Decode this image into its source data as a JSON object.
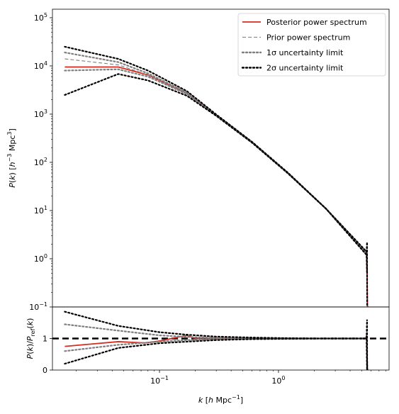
{
  "chart_data": [
    {
      "panel": "top",
      "type": "line",
      "xscale": "log",
      "yscale": "log",
      "xlim": [
        0.0126,
        8.5
      ],
      "ylim": [
        0.1,
        150000
      ],
      "ylabel": "P(k) [h⁻³ Mpc³]",
      "yticklabels": [
        {
          "value": 0.1,
          "mant": "10",
          "exp": "−1"
        },
        {
          "value": 1,
          "mant": "10",
          "exp": "0"
        },
        {
          "value": 10,
          "mant": "10",
          "exp": "1"
        },
        {
          "value": 100,
          "mant": "10",
          "exp": "2"
        },
        {
          "value": 1000,
          "mant": "10",
          "exp": "3"
        },
        {
          "value": 10000,
          "mant": "10",
          "exp": "4"
        },
        {
          "value": 100000,
          "mant": "10",
          "exp": "5"
        }
      ],
      "legend": {
        "placement": "top-right",
        "entries": [
          {
            "label": "Posterior power spectrum",
            "style": "solid",
            "color": "#d62b1e"
          },
          {
            "label": "Prior power spectrum",
            "style": "dashed",
            "color": "#7f7f7f"
          },
          {
            "label": "1σ uncertainty limit",
            "style": "dotted",
            "color": "#7f7f7f"
          },
          {
            "label": "2σ uncertainty limit",
            "style": "dotted",
            "color": "#000000"
          }
        ]
      },
      "series": [
        {
          "name": "Posterior power spectrum",
          "color": "#d62b1e",
          "style": "solid",
          "width": 1.8,
          "x": [
            0.016,
            0.045,
            0.08,
            0.17,
            0.3,
            0.6,
            1.2,
            2.5,
            5.5,
            5.55,
            5.6,
            5.7
          ],
          "y": [
            9500,
            9500,
            6500,
            2700,
            950,
            260,
            60,
            11,
            1.3,
            0.5,
            0.1,
            0.1
          ]
        },
        {
          "name": "Prior power spectrum",
          "color": "#7f7f7f",
          "style": "dashed",
          "width": 1.1,
          "x": [
            0.016,
            0.045,
            0.08,
            0.17,
            0.3,
            0.6,
            1.2,
            2.5,
            5.5,
            5.55
          ],
          "y": [
            14000,
            10500,
            6500,
            2700,
            950,
            260,
            60,
            11,
            1.3,
            1.3
          ]
        },
        {
          "name": "1σ upper",
          "color": "#7f7f7f",
          "style": "dotted",
          "width": 2.2,
          "x": [
            0.016,
            0.045,
            0.08,
            0.17,
            0.3,
            0.6,
            1.2,
            2.5,
            5.5,
            5.55
          ],
          "y": [
            19000,
            12000,
            7000,
            2800,
            960,
            262,
            60,
            11,
            1.35,
            1.5
          ]
        },
        {
          "name": "1σ lower",
          "color": "#7f7f7f",
          "style": "dotted",
          "width": 2.2,
          "x": [
            0.016,
            0.045,
            0.08,
            0.17,
            0.3,
            0.6,
            1.2,
            2.5,
            5.5,
            5.55
          ],
          "y": [
            8000,
            8500,
            6000,
            2600,
            940,
            258,
            60,
            11,
            1.25,
            1.1
          ]
        },
        {
          "name": "2σ upper",
          "color": "#000000",
          "style": "dotted",
          "width": 2.2,
          "x": [
            0.016,
            0.045,
            0.08,
            0.17,
            0.3,
            0.6,
            1.2,
            2.5,
            5.5,
            5.55,
            5.56
          ],
          "y": [
            25000,
            14000,
            8000,
            3000,
            980,
            265,
            61,
            11,
            1.4,
            2.2,
            0.1
          ]
        },
        {
          "name": "2σ lower",
          "color": "#000000",
          "style": "dotted",
          "width": 2.2,
          "x": [
            0.016,
            0.045,
            0.08,
            0.17,
            0.3,
            0.6,
            1.2,
            2.5,
            5.5,
            5.55
          ],
          "y": [
            2500,
            6800,
            5000,
            2400,
            920,
            255,
            59,
            11,
            1.2,
            0.5
          ]
        }
      ]
    },
    {
      "panel": "bottom",
      "type": "line",
      "xscale": "log",
      "xlim": [
        0.0126,
        8.5
      ],
      "ylim": [
        0,
        2
      ],
      "xlabel": "k [h Mpc⁻¹]",
      "ylabel": "P(k)/P_ref(k)",
      "xticklabels": [
        {
          "value": 0.1,
          "mant": "10",
          "exp": "−1"
        },
        {
          "value": 1,
          "mant": "10",
          "exp": "0"
        }
      ],
      "yticklabels": [
        "0",
        "1"
      ],
      "yticks": [
        0,
        1
      ],
      "series": [
        {
          "name": "Reference",
          "color": "#000000",
          "style": "dashed-thick",
          "width": 2.4,
          "x": [
            0.0126,
            8.5
          ],
          "y": [
            1.0,
            1.0
          ]
        },
        {
          "name": "Posterior ratio",
          "color": "#d62b1e",
          "style": "solid",
          "width": 1.8,
          "x": [
            0.016,
            0.045,
            0.075,
            0.1,
            0.17,
            0.2,
            0.3,
            0.6,
            1.2,
            2.5,
            5.4,
            5.5,
            5.55,
            5.6,
            5.7
          ],
          "y": [
            0.75,
            0.9,
            0.86,
            0.92,
            1.1,
            1.0,
            1.0,
            1.0,
            1.0,
            1.0,
            1.0,
            1.1,
            0.5,
            0.0,
            0.0
          ]
        },
        {
          "name": "1σ upper",
          "color": "#7f7f7f",
          "style": "dotted",
          "width": 2.2,
          "x": [
            0.016,
            0.045,
            0.1,
            0.17,
            0.3,
            0.6,
            1.2,
            2.5,
            5.5
          ],
          "y": [
            1.45,
            1.25,
            1.1,
            1.05,
            1.02,
            1.01,
            1.0,
            1.0,
            1.0
          ]
        },
        {
          "name": "1σ lower",
          "color": "#7f7f7f",
          "style": "dotted",
          "width": 2.2,
          "x": [
            0.016,
            0.045,
            0.1,
            0.17,
            0.3,
            0.6,
            1.2,
            2.5,
            5.5
          ],
          "y": [
            0.6,
            0.8,
            0.9,
            0.95,
            0.98,
            0.99,
            1.0,
            1.0,
            1.0
          ]
        },
        {
          "name": "2σ upper",
          "color": "#000000",
          "style": "dotted",
          "width": 2.2,
          "x": [
            0.016,
            0.045,
            0.1,
            0.17,
            0.3,
            0.6,
            1.2,
            2.5,
            5.5,
            5.55,
            5.56
          ],
          "y": [
            1.85,
            1.4,
            1.2,
            1.12,
            1.06,
            1.03,
            1.01,
            1.0,
            1.0,
            1.6,
            0.0
          ]
        },
        {
          "name": "2σ lower",
          "color": "#000000",
          "style": "dotted",
          "width": 2.2,
          "x": [
            0.016,
            0.045,
            0.1,
            0.17,
            0.3,
            0.6,
            1.2,
            2.5,
            5.5,
            5.55
          ],
          "y": [
            0.2,
            0.7,
            0.85,
            0.9,
            0.95,
            0.98,
            0.99,
            1.0,
            1.0,
            0.0
          ]
        }
      ]
    }
  ]
}
